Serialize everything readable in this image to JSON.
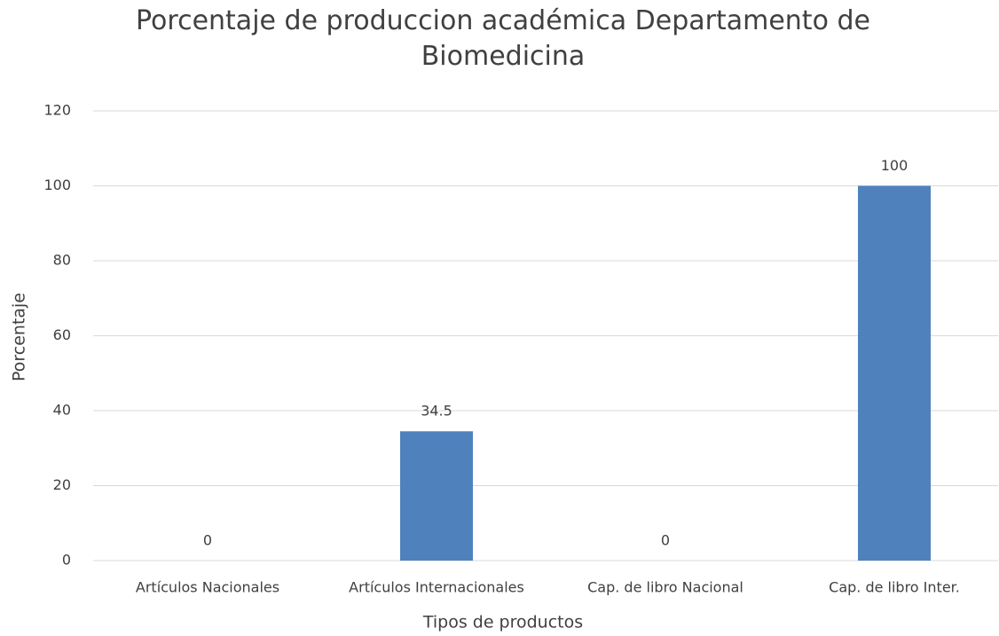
{
  "chart_data": {
    "type": "bar",
    "title": "Porcentaje de produccion académica Departamento de Biomedicina",
    "x_label": "Tipos de productos",
    "y_label": "Porcentaje",
    "categories": [
      "Artículos Nacionales",
      "Artículos Internacionales",
      "Cap. de libro Nacional",
      "Cap. de libro Inter."
    ],
    "values": [
      0,
      34.5,
      0,
      100
    ],
    "color": "#4f81bd",
    "ylim": [
      0,
      120
    ],
    "yticks": [
      0,
      20,
      40,
      60,
      80,
      100,
      120
    ],
    "grid": true,
    "data_labels": true
  }
}
